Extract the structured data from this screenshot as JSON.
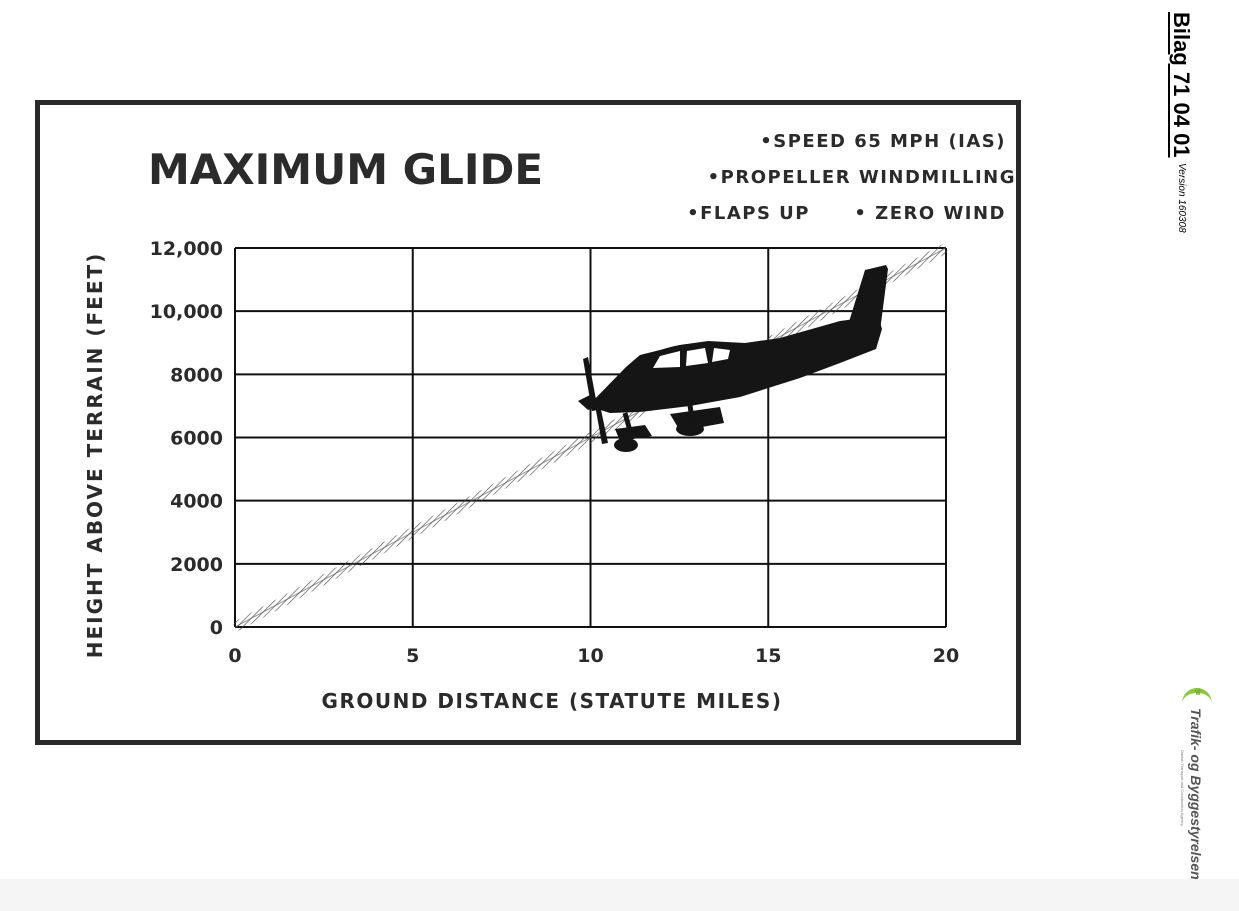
{
  "document": {
    "title": "Bilag 71 04 01",
    "version": "Version 160308",
    "logo_text": "Trafik- og Byggestyrelsen",
    "logo_subtext": "Danish Transport and Construction Agency"
  },
  "chart_data": {
    "type": "line",
    "title": "MAXIMUM GLIDE",
    "notes": [
      "•SPEED 65 MPH (IAS)",
      "•PROPELLER WINDMILLING",
      "•FLAPS UP",
      "• ZERO WIND"
    ],
    "xlabel": "GROUND DISTANCE (STATUTE MILES)",
    "ylabel": "HEIGHT ABOVE TERRAIN (FEET)",
    "xlim": [
      0,
      20
    ],
    "ylim": [
      0,
      12000
    ],
    "x_ticks": [
      "0",
      "5",
      "10",
      "15",
      "20"
    ],
    "y_ticks": [
      "0",
      "2000",
      "4000",
      "6000",
      "8000",
      "10,000",
      "12,000"
    ],
    "grid": true,
    "series": [
      {
        "x": [
          0,
          20
        ],
        "y": [
          0,
          12000
        ]
      }
    ],
    "colors": {
      "line": "#555555",
      "grid": "#111111",
      "text": "#2b2b2b"
    }
  }
}
